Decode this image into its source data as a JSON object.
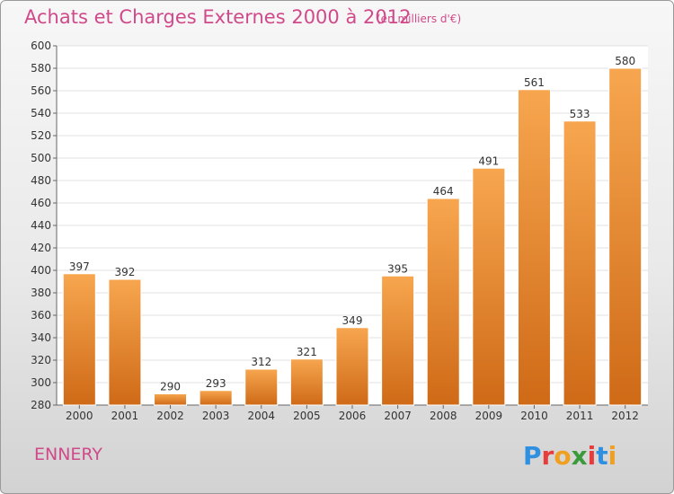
{
  "header": {
    "title": "Achats et Charges Externes 2000 à 2012",
    "subtitle": "(en milliers d'€)"
  },
  "footer": {
    "location": "ENNERY",
    "logo_text": "Proxiti"
  },
  "colors": {
    "bar_top": "#f7a64f",
    "bar_bottom": "#cf6a17",
    "title": "#d04a8a"
  },
  "chart_data": {
    "type": "bar",
    "title": "Achats et Charges Externes 2000 à 2012",
    "subtitle": "(en milliers d'€)",
    "categories": [
      "2000",
      "2001",
      "2002",
      "2003",
      "2004",
      "2005",
      "2006",
      "2007",
      "2008",
      "2009",
      "2010",
      "2011",
      "2012"
    ],
    "values": [
      397,
      392,
      290,
      293,
      312,
      321,
      349,
      395,
      464,
      491,
      561,
      533,
      580
    ],
    "ylim": [
      280,
      600
    ],
    "ytick_step": 20,
    "grid": true,
    "legend": "none"
  }
}
